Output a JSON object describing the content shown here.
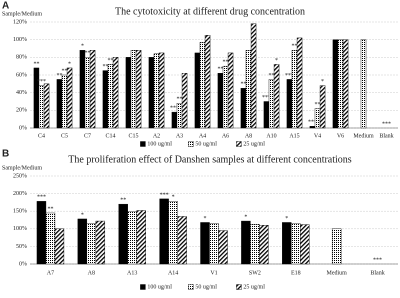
{
  "chart_data": [
    {
      "type": "bar",
      "panel": "A",
      "title": "The cytotoxicity at different drug concentration",
      "y_label": "Sample/Medium",
      "categories": [
        "C4",
        "C5",
        "C7",
        "C14",
        "C15",
        "A2",
        "A3",
        "A4",
        "A6",
        "A8",
        "A10",
        "A15",
        "V4",
        "V6",
        "Medium",
        "Blank"
      ],
      "series": [
        {
          "name": "100 ug/ml",
          "color": "#000000",
          "pattern": "solid",
          "values": [
            68,
            55,
            88,
            65,
            80,
            80,
            18,
            85,
            62,
            45,
            30,
            55,
            2,
            100,
            null,
            0
          ],
          "significance": [
            "**",
            "**",
            "*",
            "**",
            null,
            null,
            "***",
            null,
            "**",
            "**",
            "***",
            "***",
            "***",
            null,
            null,
            null
          ]
        },
        {
          "name": "50 ug/ml",
          "color": "#000000",
          "pattern": "dots",
          "values": [
            48,
            60,
            80,
            72,
            88,
            84,
            28,
            97,
            70,
            88,
            55,
            88,
            22,
            100,
            100,
            0
          ],
          "significance": [
            "***",
            "**",
            "**",
            "**",
            null,
            null,
            "**",
            null,
            "**",
            null,
            "**",
            "**",
            "**",
            null,
            null,
            "***"
          ]
        },
        {
          "name": "25 ug/ml",
          "color": "#000000",
          "pattern": "stripes",
          "values": [
            50,
            68,
            88,
            80,
            88,
            85,
            62,
            105,
            85,
            118,
            72,
            102,
            48,
            100,
            null,
            0
          ],
          "significance": [
            null,
            "*",
            null,
            null,
            null,
            null,
            null,
            null,
            null,
            null,
            "*",
            null,
            "*",
            null,
            null,
            null
          ]
        }
      ],
      "ylim": [
        0,
        120
      ],
      "yticks": [
        {
          "value": 0,
          "label": "0%"
        },
        {
          "value": 20,
          "label": "20%"
        },
        {
          "value": 40,
          "label": "40%"
        },
        {
          "value": 60,
          "label": "60%"
        },
        {
          "value": 80,
          "label": "80%"
        },
        {
          "value": 100,
          "label": "100%"
        },
        {
          "value": 120,
          "label": "120%"
        }
      ],
      "grid": true
    },
    {
      "type": "bar",
      "panel": "B",
      "title": "The proliferation effect of Danshen samples at different concentrations",
      "y_label": "Sample/Medium",
      "categories": [
        "A7",
        "A8",
        "A13",
        "A14",
        "V1",
        "SW2",
        "E18",
        "Medium",
        "Blank"
      ],
      "series": [
        {
          "name": "100 ug/ml",
          "color": "#000000",
          "pattern": "solid",
          "values": [
            178,
            128,
            170,
            185,
            118,
            122,
            118,
            null,
            0
          ],
          "significance": [
            "***",
            "*",
            "**",
            "***",
            "*",
            "*",
            "*",
            null,
            null
          ]
        },
        {
          "name": "50 ug/ml",
          "color": "#000000",
          "pattern": "dots",
          "values": [
            145,
            115,
            150,
            178,
            115,
            113,
            115,
            100,
            0
          ],
          "significance": [
            "**",
            null,
            null,
            "*",
            null,
            null,
            null,
            null,
            "***"
          ]
        },
        {
          "name": "25 ug/ml",
          "color": "#000000",
          "pattern": "stripes",
          "values": [
            100,
            122,
            152,
            135,
            95,
            110,
            112,
            null,
            0
          ],
          "significance": [
            null,
            null,
            null,
            null,
            null,
            null,
            null,
            null,
            null
          ]
        }
      ],
      "ylim": [
        0,
        250
      ],
      "yticks": [
        {
          "value": 0,
          "label": "0%"
        },
        {
          "value": 50,
          "label": "50%"
        },
        {
          "value": 100,
          "label": "100%"
        },
        {
          "value": 150,
          "label": "150%"
        },
        {
          "value": 200,
          "label": "200%"
        },
        {
          "value": 250,
          "label": "250%"
        }
      ],
      "grid": true
    }
  ]
}
